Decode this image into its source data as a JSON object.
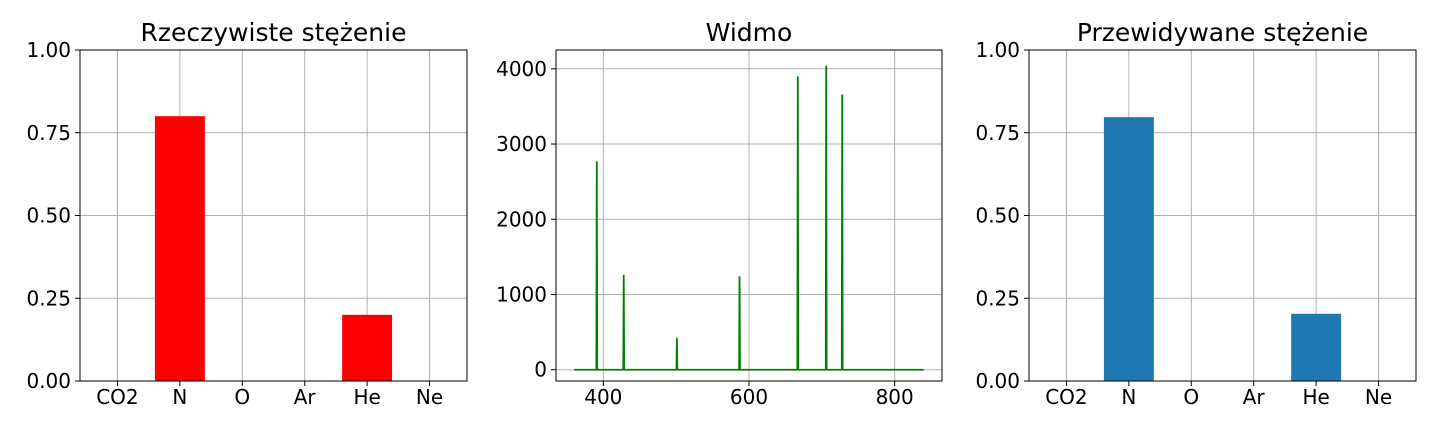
{
  "chart_data": [
    {
      "type": "bar",
      "title": "Rzeczywiste stężenie",
      "categories": [
        "CO2",
        "N",
        "O",
        "Ar",
        "He",
        "Ne"
      ],
      "values": [
        0.0,
        0.8,
        0.0,
        0.0,
        0.2,
        0.0
      ],
      "ylim": [
        0,
        1
      ],
      "yticks": [
        "0.00",
        "0.25",
        "0.50",
        "0.75",
        "1.00"
      ],
      "color": "#ff0000",
      "grid": true
    },
    {
      "type": "line",
      "title": "Widmo",
      "xlim": [
        335,
        865
      ],
      "ylim": [
        -150,
        4250
      ],
      "xticks": [
        "400",
        "600",
        "800"
      ],
      "yticks": [
        "0",
        "1000",
        "2000",
        "3000",
        "4000"
      ],
      "x_range": [
        360,
        840
      ],
      "baseline": 0,
      "peaks": [
        {
          "x": 391,
          "y": 2770
        },
        {
          "x": 428,
          "y": 1260
        },
        {
          "x": 501,
          "y": 420
        },
        {
          "x": 587,
          "y": 1240
        },
        {
          "x": 667,
          "y": 3900
        },
        {
          "x": 706,
          "y": 4040
        },
        {
          "x": 728,
          "y": 3660
        }
      ],
      "color": "#008000",
      "grid": true
    },
    {
      "type": "bar",
      "title": "Przewidywane stężenie",
      "categories": [
        "CO2",
        "N",
        "O",
        "Ar",
        "He",
        "Ne"
      ],
      "values": [
        0.0,
        0.797,
        0.0,
        0.0,
        0.203,
        0.0
      ],
      "ylim": [
        0,
        1
      ],
      "yticks": [
        "0.00",
        "0.25",
        "0.50",
        "0.75",
        "1.00"
      ],
      "color": "#1f77b4",
      "grid": true
    }
  ]
}
